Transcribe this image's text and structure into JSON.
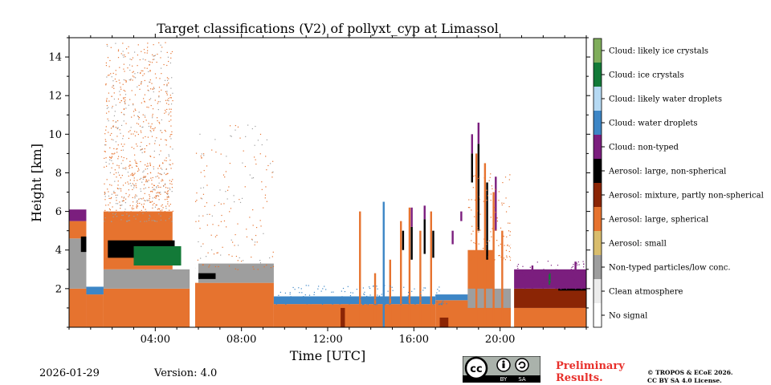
{
  "chart_data": {
    "type": "heatmap",
    "title": "Target classifications (V2) of pollyxt_cyp at Limassol",
    "xlabel": "Time [UTC]",
    "ylabel": "Height [km]",
    "xlim": [
      0,
      24
    ],
    "ylim": [
      0,
      15
    ],
    "xticks": [
      4,
      8,
      12,
      16,
      20
    ],
    "xtick_labels": [
      "04:00",
      "08:00",
      "12:00",
      "16:00",
      "20:00"
    ],
    "yticks": [
      2,
      4,
      6,
      8,
      10,
      12,
      14
    ],
    "ytick_labels": [
      "2",
      "4",
      "6",
      "8",
      "10",
      "12",
      "14"
    ],
    "legend": [
      {
        "label": "Cloud: likely ice crystals",
        "color": "#7fad5b"
      },
      {
        "label": "Cloud: ice crystals",
        "color": "#137a38"
      },
      {
        "label": "Cloud: likely water droplets",
        "color": "#b5d9f3"
      },
      {
        "label": "Cloud: water droplets",
        "color": "#3d86c6"
      },
      {
        "label": "Cloud: non-typed",
        "color": "#7b1e7e"
      },
      {
        "label": "Aerosol: large, non-spherical",
        "color": "#000000"
      },
      {
        "label": "Aerosol: mixture, partly non-spherical",
        "color": "#8b2505"
      },
      {
        "label": "Aerosol: large, spherical",
        "color": "#e6732f"
      },
      {
        "label": "Aerosol: small",
        "color": "#d9bd6d"
      },
      {
        "label": "Non-typed particles/low conc.",
        "color": "#9e9e9e"
      },
      {
        "label": "Clean atmosphere",
        "color": "#ececec"
      },
      {
        "label": "No signal",
        "color": "#ffffff"
      }
    ],
    "regions": [
      {
        "cls": "Aerosol: large, spherical",
        "t0": 0.0,
        "t1": 0.8,
        "h0": 0.0,
        "h1": 2.0
      },
      {
        "cls": "Non-typed particles/low conc.",
        "t0": 0.0,
        "t1": 0.8,
        "h0": 2.0,
        "h1": 4.6
      },
      {
        "cls": "Aerosol: large, spherical",
        "t0": 0.0,
        "t1": 0.8,
        "h0": 4.6,
        "h1": 5.5
      },
      {
        "cls": "Cloud: non-typed",
        "t0": 0.0,
        "t1": 0.8,
        "h0": 5.5,
        "h1": 6.1
      },
      {
        "cls": "Aerosol: large, non-spherical",
        "t0": 0.55,
        "t1": 0.8,
        "h0": 3.9,
        "h1": 4.7
      },
      {
        "cls": "Aerosol: large, spherical",
        "t0": 0.8,
        "t1": 1.6,
        "h0": 0.0,
        "h1": 1.7
      },
      {
        "cls": "Cloud: water droplets",
        "t0": 0.8,
        "t1": 1.6,
        "h0": 1.7,
        "h1": 2.1
      },
      {
        "cls": "Aerosol: large, spherical",
        "t0": 1.6,
        "t1": 5.6,
        "h0": 0.0,
        "h1": 2.0
      },
      {
        "cls": "Non-typed particles/low conc.",
        "t0": 1.6,
        "t1": 5.6,
        "h0": 2.0,
        "h1": 3.0
      },
      {
        "cls": "Aerosol: large, spherical",
        "t0": 1.6,
        "t1": 4.8,
        "h0": 3.0,
        "h1": 6.0
      },
      {
        "cls": "Aerosol: large, non-spherical",
        "t0": 1.8,
        "t1": 4.9,
        "h0": 3.6,
        "h1": 4.5
      },
      {
        "cls": "Cloud: ice crystals",
        "t0": 3.0,
        "t1": 5.2,
        "h0": 3.2,
        "h1": 4.2
      },
      {
        "cls": "Aerosol: large, spherical",
        "t0": 5.8,
        "t1": 9.5,
        "h0": 0.0,
        "h1": 2.3
      },
      {
        "cls": "Non-typed particles/low conc.",
        "t0": 6.0,
        "t1": 9.5,
        "h0": 2.3,
        "h1": 3.3
      },
      {
        "cls": "Aerosol: large, non-spherical",
        "t0": 6.0,
        "t1": 6.8,
        "h0": 2.5,
        "h1": 2.8
      },
      {
        "cls": "Aerosol: large, spherical",
        "t0": 9.5,
        "t1": 17.0,
        "h0": 0.0,
        "h1": 1.2
      },
      {
        "cls": "Cloud: water droplets",
        "t0": 9.5,
        "t1": 17.0,
        "h0": 1.2,
        "h1": 1.6
      },
      {
        "cls": "Aerosol: mixture, partly non-spherical",
        "t0": 12.6,
        "t1": 12.8,
        "h0": 0.0,
        "h1": 1.0
      },
      {
        "cls": "Aerosol: large, spherical",
        "t0": 17.0,
        "t1": 20.5,
        "h0": 0.0,
        "h1": 1.4
      },
      {
        "cls": "Cloud: water droplets",
        "t0": 17.0,
        "t1": 18.5,
        "h0": 1.4,
        "h1": 1.7
      },
      {
        "cls": "Aerosol: large, spherical",
        "t0": 18.5,
        "t1": 19.7,
        "h0": 1.4,
        "h1": 4.0
      },
      {
        "cls": "Non-typed particles/low conc.",
        "t0": 18.5,
        "t1": 20.5,
        "h0": 1.0,
        "h1": 2.0
      },
      {
        "cls": "Aerosol: large, spherical",
        "t0": 20.6,
        "t1": 24.0,
        "h0": 0.0,
        "h1": 1.0
      },
      {
        "cls": "Aerosol: mixture, partly non-spherical",
        "t0": 20.6,
        "t1": 24.0,
        "h0": 1.0,
        "h1": 2.0
      },
      {
        "cls": "Aerosol: large, non-spherical",
        "t0": 22.7,
        "t1": 24.0,
        "h0": 1.9,
        "h1": 2.4
      },
      {
        "cls": "Cloud: non-typed",
        "t0": 20.6,
        "t1": 24.0,
        "h0": 2.0,
        "h1": 3.0
      },
      {
        "cls": "Aerosol: mixture, partly non-spherical",
        "t0": 17.2,
        "t1": 17.6,
        "h0": 0.0,
        "h1": 0.5
      }
    ],
    "columns": [
      {
        "cls": "Aerosol: large, spherical",
        "t": 15.4,
        "h0": 0.0,
        "h1": 5.5
      },
      {
        "cls": "Aerosol: large, non-spherical",
        "t": 15.5,
        "h0": 4.0,
        "h1": 5.0
      },
      {
        "cls": "Aerosol: large, spherical",
        "t": 15.8,
        "h0": 0.0,
        "h1": 6.2
      },
      {
        "cls": "Aerosol: large, non-spherical",
        "t": 15.9,
        "h0": 3.5,
        "h1": 5.2
      },
      {
        "cls": "Cloud: non-typed",
        "t": 15.9,
        "h0": 5.2,
        "h1": 6.2
      },
      {
        "cls": "Aerosol: large, spherical",
        "t": 16.3,
        "h0": 0.0,
        "h1": 5.0
      },
      {
        "cls": "Aerosol: large, non-spherical",
        "t": 16.5,
        "h0": 3.8,
        "h1": 5.6
      },
      {
        "cls": "Cloud: non-typed",
        "t": 16.5,
        "h0": 5.6,
        "h1": 6.3
      },
      {
        "cls": "Aerosol: large, spherical",
        "t": 16.8,
        "h0": 0.0,
        "h1": 6.0
      },
      {
        "cls": "Aerosol: large, non-spherical",
        "t": 16.9,
        "h0": 3.6,
        "h1": 5.0
      },
      {
        "cls": "Aerosol: large, spherical",
        "t": 14.9,
        "h0": 0.0,
        "h1": 3.5
      },
      {
        "cls": "Aerosol: large, spherical",
        "t": 14.2,
        "h0": 0.0,
        "h1": 2.8
      },
      {
        "cls": "Aerosol: large, spherical",
        "t": 13.5,
        "h0": 0.0,
        "h1": 6.0
      },
      {
        "cls": "Cloud: water droplets",
        "t": 14.6,
        "h0": 0.0,
        "h1": 6.5
      },
      {
        "cls": "Aerosol: large, spherical",
        "t": 18.9,
        "h0": 0.0,
        "h1": 9.0
      },
      {
        "cls": "Aerosol: large, non-spherical",
        "t": 19.0,
        "h0": 5.0,
        "h1": 9.5
      },
      {
        "cls": "Cloud: non-typed",
        "t": 19.0,
        "h0": 9.5,
        "h1": 10.6
      },
      {
        "cls": "Aerosol: large, non-spherical",
        "t": 18.7,
        "h0": 7.5,
        "h1": 9.0
      },
      {
        "cls": "Cloud: non-typed",
        "t": 18.7,
        "h0": 9.0,
        "h1": 10.0
      },
      {
        "cls": "Aerosol: large, spherical",
        "t": 19.3,
        "h0": 0.0,
        "h1": 8.5
      },
      {
        "cls": "Aerosol: large, non-spherical",
        "t": 19.4,
        "h0": 3.5,
        "h1": 7.5
      },
      {
        "cls": "Aerosol: large, spherical",
        "t": 19.7,
        "h0": 0.0,
        "h1": 7.0
      },
      {
        "cls": "Cloud: non-typed",
        "t": 19.8,
        "h0": 5.0,
        "h1": 7.8
      },
      {
        "cls": "Aerosol: large, spherical",
        "t": 20.1,
        "h0": 0.0,
        "h1": 5.0
      },
      {
        "cls": "Cloud: non-typed",
        "t": 18.2,
        "h0": 5.5,
        "h1": 6.0
      },
      {
        "cls": "Cloud: non-typed",
        "t": 17.8,
        "h0": 4.3,
        "h1": 5.0
      },
      {
        "cls": "Cloud: non-typed",
        "t": 21.5,
        "h0": 2.0,
        "h1": 3.2
      },
      {
        "cls": "Cloud: non-typed",
        "t": 23.5,
        "h0": 2.0,
        "h1": 3.4
      },
      {
        "cls": "Cloud: ice crystals",
        "t": 22.3,
        "h0": 2.2,
        "h1": 2.8
      },
      {
        "cls": "Cloud: non-typed",
        "t": 22.6,
        "h0": 2.0,
        "h1": 3.0
      }
    ],
    "no_signal_gaps": [
      {
        "t0": 0.85,
        "t1": 1.55,
        "h0": 2.3,
        "h1": 15.0
      },
      {
        "t0": 5.6,
        "t1": 5.85,
        "h0": 0.0,
        "h1": 15.0
      },
      {
        "t0": 20.5,
        "t1": 20.65,
        "h0": 0.0,
        "h1": 15.0
      }
    ],
    "scatter_zones": [
      {
        "cls": "Aerosol: large, spherical",
        "t0": 1.6,
        "t1": 4.8,
        "h0": 5.5,
        "h1": 14.8,
        "n": 700
      },
      {
        "cls": "Non-typed particles/low conc.",
        "t0": 1.6,
        "t1": 4.8,
        "h0": 5.5,
        "h1": 14.8,
        "n": 220
      },
      {
        "cls": "Aerosol: large, spherical",
        "t0": 5.8,
        "t1": 9.5,
        "h0": 3.0,
        "h1": 10.5,
        "n": 120
      },
      {
        "cls": "Non-typed particles/low conc.",
        "t0": 5.8,
        "t1": 9.5,
        "h0": 3.0,
        "h1": 10.5,
        "n": 60
      },
      {
        "cls": "Aerosol: large, spherical",
        "t0": 18.5,
        "t1": 20.5,
        "h0": 3.5,
        "h1": 8.0,
        "n": 120
      },
      {
        "cls": "Cloud: non-typed",
        "t0": 20.7,
        "t1": 24.0,
        "h0": 2.0,
        "h1": 3.5,
        "n": 120
      },
      {
        "cls": "Cloud: water droplets",
        "t0": 9.5,
        "t1": 17.5,
        "h0": 1.2,
        "h1": 2.2,
        "n": 160
      }
    ]
  },
  "footer": {
    "date": "2026-01-29",
    "version": "Version: 4.0",
    "cc_text": "cc",
    "cc_by": "BY",
    "cc_sa": "SA",
    "preliminary_line1": "Preliminary",
    "preliminary_line2": "Results.",
    "license_line1": "© TROPOS & ECoE 2026.",
    "license_line2": "CC BY SA 4.0 License."
  }
}
